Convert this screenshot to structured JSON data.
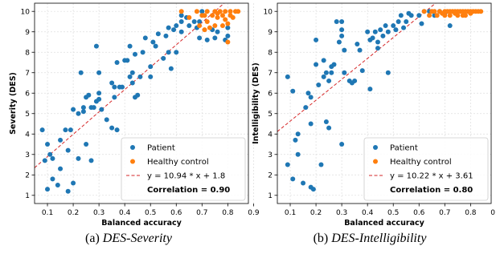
{
  "captions": [
    {
      "label": "(a)",
      "name": "DES-Severity"
    },
    {
      "label": "(b)",
      "name": "DES-Intelligibility"
    }
  ],
  "colors": {
    "patient": "#1f77b4",
    "control": "#ff7f0e",
    "fit": "#d62728",
    "grid": "#dddddd"
  },
  "chart_data": [
    {
      "type": "scatter",
      "xlabel": "Balanced accuracy",
      "ylabel": "Severity (DES)",
      "xlim": [
        0.05,
        0.88
      ],
      "ylim": [
        0.6,
        10.4
      ],
      "xticks": [
        "0.1",
        "0.2",
        "0.3",
        "0.4",
        "0.5",
        "0.6",
        "0.7",
        "0.8",
        "0.9"
      ],
      "yticks": [
        "1",
        "2",
        "3",
        "4",
        "5",
        "6",
        "7",
        "8",
        "9",
        "10"
      ],
      "grid": true,
      "legend_position": "lower-right",
      "legend": {
        "patient": "Patient",
        "control": "Healthy control",
        "fit": "y = 10.94 * x + 1.8",
        "correlation": "Correlation = 0.90"
      },
      "fit": {
        "slope": 10.94,
        "intercept": 1.8
      },
      "series": [
        {
          "name": "Patient",
          "points": [
            [
              0.08,
              4.2
            ],
            [
              0.09,
              2.7
            ],
            [
              0.1,
              3.5
            ],
            [
              0.1,
              1.3
            ],
            [
              0.11,
              3.0
            ],
            [
              0.12,
              2.8
            ],
            [
              0.12,
              1.8
            ],
            [
              0.14,
              1.5
            ],
            [
              0.15,
              3.7
            ],
            [
              0.15,
              2.3
            ],
            [
              0.17,
              4.2
            ],
            [
              0.18,
              3.2
            ],
            [
              0.18,
              1.2
            ],
            [
              0.19,
              4.2
            ],
            [
              0.2,
              5.2
            ],
            [
              0.2,
              1.6
            ],
            [
              0.22,
              2.8
            ],
            [
              0.22,
              5.0
            ],
            [
              0.23,
              7.0
            ],
            [
              0.24,
              5.3
            ],
            [
              0.24,
              5.1
            ],
            [
              0.25,
              5.8
            ],
            [
              0.25,
              3.5
            ],
            [
              0.26,
              5.9
            ],
            [
              0.27,
              5.3
            ],
            [
              0.27,
              2.7
            ],
            [
              0.28,
              5.3
            ],
            [
              0.29,
              5.6
            ],
            [
              0.29,
              8.3
            ],
            [
              0.3,
              5.7
            ],
            [
              0.3,
              6.0
            ],
            [
              0.3,
              7.0
            ],
            [
              0.31,
              5.2
            ],
            [
              0.33,
              4.7
            ],
            [
              0.35,
              6.5
            ],
            [
              0.35,
              4.3
            ],
            [
              0.36,
              5.8
            ],
            [
              0.36,
              6.3
            ],
            [
              0.37,
              7.5
            ],
            [
              0.37,
              4.2
            ],
            [
              0.38,
              6.3
            ],
            [
              0.39,
              6.3
            ],
            [
              0.4,
              7.6
            ],
            [
              0.41,
              7.6
            ],
            [
              0.42,
              6.8
            ],
            [
              0.42,
              8.3
            ],
            [
              0.43,
              7.0
            ],
            [
              0.43,
              6.5
            ],
            [
              0.44,
              7.9
            ],
            [
              0.44,
              5.8
            ],
            [
              0.45,
              5.9
            ],
            [
              0.46,
              6.8
            ],
            [
              0.47,
              8.0
            ],
            [
              0.48,
              8.7
            ],
            [
              0.5,
              6.8
            ],
            [
              0.5,
              7.3
            ],
            [
              0.51,
              8.5
            ],
            [
              0.52,
              8.3
            ],
            [
              0.53,
              8.9
            ],
            [
              0.55,
              7.7
            ],
            [
              0.56,
              8.8
            ],
            [
              0.57,
              9.2
            ],
            [
              0.57,
              8.0
            ],
            [
              0.58,
              7.2
            ],
            [
              0.59,
              9.1
            ],
            [
              0.6,
              9.3
            ],
            [
              0.6,
              8.0
            ],
            [
              0.62,
              9.0
            ],
            [
              0.62,
              9.8
            ],
            [
              0.62,
              9.5
            ],
            [
              0.64,
              9.7
            ],
            [
              0.65,
              9.3
            ],
            [
              0.67,
              9.5
            ],
            [
              0.68,
              9.2
            ],
            [
              0.69,
              8.7
            ],
            [
              0.69,
              9.5
            ],
            [
              0.7,
              10.0
            ],
            [
              0.72,
              8.6
            ],
            [
              0.74,
              9.1
            ],
            [
              0.75,
              8.7
            ],
            [
              0.76,
              9.0
            ],
            [
              0.79,
              8.6
            ],
            [
              0.8,
              9.2
            ],
            [
              0.8,
              8.8
            ]
          ]
        },
        {
          "name": "Healthy control",
          "points": [
            [
              0.62,
              10.0
            ],
            [
              0.65,
              9.7
            ],
            [
              0.68,
              10.0
            ],
            [
              0.69,
              9.3
            ],
            [
              0.7,
              9.8
            ],
            [
              0.71,
              9.1
            ],
            [
              0.71,
              9.8
            ],
            [
              0.72,
              10.0
            ],
            [
              0.72,
              9.5
            ],
            [
              0.73,
              9.2
            ],
            [
              0.74,
              9.8
            ],
            [
              0.75,
              10.0
            ],
            [
              0.75,
              9.3
            ],
            [
              0.76,
              9.9
            ],
            [
              0.76,
              9.7
            ],
            [
              0.77,
              10.0
            ],
            [
              0.78,
              9.3
            ],
            [
              0.78,
              9.8
            ],
            [
              0.79,
              9.6
            ],
            [
              0.79,
              10.0
            ],
            [
              0.8,
              9.4
            ],
            [
              0.8,
              8.5
            ],
            [
              0.81,
              9.8
            ],
            [
              0.81,
              10.0
            ],
            [
              0.82,
              9.7
            ],
            [
              0.83,
              10.0
            ],
            [
              0.84,
              10.0
            ]
          ]
        }
      ]
    },
    {
      "type": "scatter",
      "xlabel": "Balanced accuracy",
      "ylabel": "Intelligibility (DES)",
      "xlim": [
        0.05,
        0.88
      ],
      "ylim": [
        0.6,
        10.4
      ],
      "xticks": [
        "0.1",
        "0.2",
        "0.3",
        "0.4",
        "0.5",
        "0.6",
        "0.7",
        "0.8",
        "0.9"
      ],
      "yticks": [
        "1",
        "2",
        "3",
        "4",
        "5",
        "6",
        "7",
        "8",
        "9",
        "10"
      ],
      "grid": true,
      "legend_position": "lower-right",
      "legend": {
        "patient": "Patient",
        "control": "Healthy control",
        "fit": "y = 10.22 * x + 3.61",
        "correlation": "Correlation = 0.80"
      },
      "fit": {
        "slope": 10.22,
        "intercept": 3.61
      },
      "series": [
        {
          "name": "Patient",
          "points": [
            [
              0.09,
              6.8
            ],
            [
              0.09,
              2.5
            ],
            [
              0.11,
              1.8
            ],
            [
              0.11,
              6.1
            ],
            [
              0.12,
              3.7
            ],
            [
              0.13,
              4.0
            ],
            [
              0.13,
              3.0
            ],
            [
              0.15,
              1.6
            ],
            [
              0.16,
              5.3
            ],
            [
              0.17,
              6.0
            ],
            [
              0.18,
              1.4
            ],
            [
              0.18,
              4.5
            ],
            [
              0.18,
              5.8
            ],
            [
              0.19,
              1.3
            ],
            [
              0.2,
              7.4
            ],
            [
              0.2,
              8.6
            ],
            [
              0.21,
              6.4
            ],
            [
              0.22,
              2.5
            ],
            [
              0.23,
              7.6
            ],
            [
              0.23,
              6.8
            ],
            [
              0.24,
              7.0
            ],
            [
              0.24,
              4.6
            ],
            [
              0.25,
              4.3
            ],
            [
              0.25,
              6.6
            ],
            [
              0.26,
              7.3
            ],
            [
              0.26,
              7.0
            ],
            [
              0.27,
              7.4
            ],
            [
              0.28,
              9.5
            ],
            [
              0.29,
              8.5
            ],
            [
              0.3,
              9.1
            ],
            [
              0.3,
              9.5
            ],
            [
              0.3,
              8.8
            ],
            [
              0.3,
              3.5
            ],
            [
              0.31,
              7.0
            ],
            [
              0.31,
              8.1
            ],
            [
              0.33,
              6.6
            ],
            [
              0.34,
              6.5
            ],
            [
              0.35,
              6.6
            ],
            [
              0.36,
              8.4
            ],
            [
              0.37,
              8.1
            ],
            [
              0.38,
              7.1
            ],
            [
              0.4,
              9.0
            ],
            [
              0.41,
              8.6
            ],
            [
              0.41,
              6.2
            ],
            [
              0.42,
              8.7
            ],
            [
              0.43,
              9.0
            ],
            [
              0.44,
              8.5
            ],
            [
              0.44,
              8.2
            ],
            [
              0.45,
              9.1
            ],
            [
              0.46,
              8.8
            ],
            [
              0.47,
              9.3
            ],
            [
              0.48,
              9.0
            ],
            [
              0.48,
              7.0
            ],
            [
              0.5,
              9.3
            ],
            [
              0.51,
              9.1
            ],
            [
              0.52,
              9.5
            ],
            [
              0.53,
              9.8
            ],
            [
              0.54,
              9.2
            ],
            [
              0.55,
              9.5
            ],
            [
              0.56,
              9.9
            ],
            [
              0.57,
              9.8
            ],
            [
              0.6,
              9.8
            ],
            [
              0.61,
              9.4
            ],
            [
              0.62,
              10.0
            ],
            [
              0.64,
              10.0
            ],
            [
              0.66,
              9.8
            ],
            [
              0.68,
              10.0
            ],
            [
              0.7,
              9.9
            ],
            [
              0.72,
              9.3
            ]
          ]
        },
        {
          "name": "Healthy control",
          "points": [
            [
              0.62,
              10.0
            ],
            [
              0.64,
              9.8
            ],
            [
              0.65,
              10.0
            ],
            [
              0.66,
              10.0
            ],
            [
              0.67,
              9.8
            ],
            [
              0.68,
              10.0
            ],
            [
              0.69,
              9.9
            ],
            [
              0.7,
              10.0
            ],
            [
              0.7,
              9.8
            ],
            [
              0.71,
              10.0
            ],
            [
              0.72,
              9.8
            ],
            [
              0.72,
              10.0
            ],
            [
              0.73,
              10.0
            ],
            [
              0.74,
              9.9
            ],
            [
              0.74,
              10.0
            ],
            [
              0.75,
              9.8
            ],
            [
              0.75,
              10.0
            ],
            [
              0.76,
              10.0
            ],
            [
              0.77,
              9.8
            ],
            [
              0.77,
              10.0
            ],
            [
              0.78,
              10.0
            ],
            [
              0.78,
              9.8
            ],
            [
              0.79,
              10.0
            ],
            [
              0.8,
              9.9
            ],
            [
              0.8,
              10.0
            ],
            [
              0.81,
              10.0
            ],
            [
              0.82,
              10.0
            ],
            [
              0.83,
              10.0
            ],
            [
              0.84,
              10.0
            ]
          ]
        }
      ]
    }
  ]
}
